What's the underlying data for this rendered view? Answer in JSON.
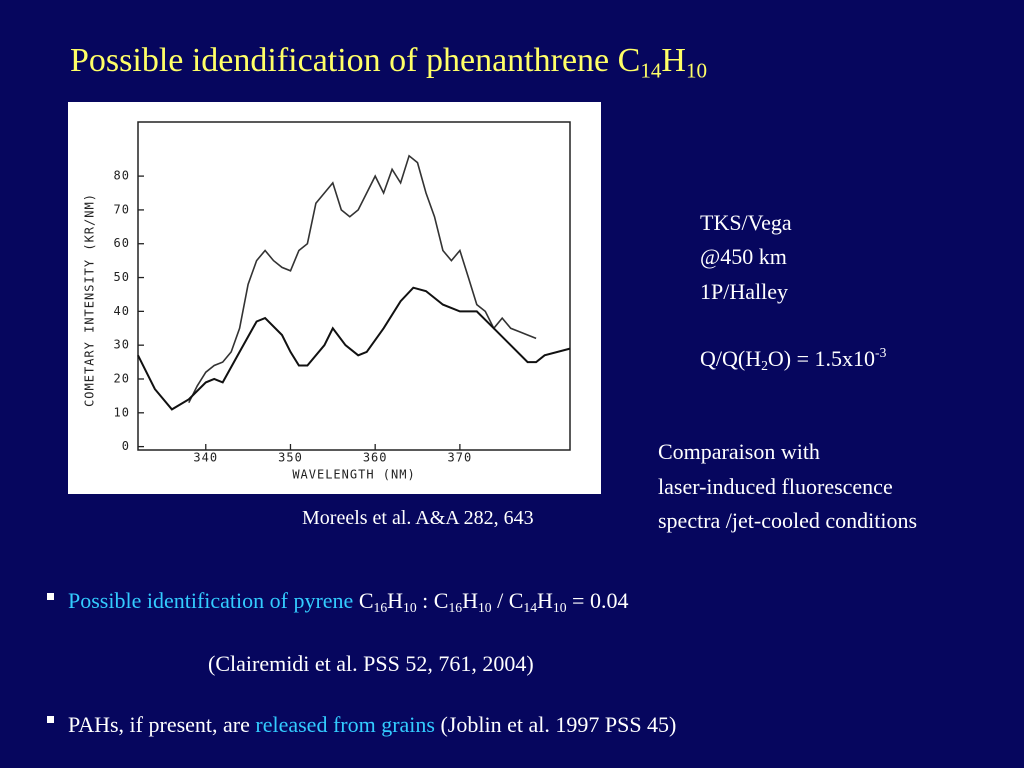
{
  "title": [
    {
      "text": "Possible idendification of phenanthrene C",
      "style": "normal"
    },
    {
      "text": "14",
      "style": "sub"
    },
    {
      "text": "H",
      "style": "normal"
    },
    {
      "text": "10",
      "style": "sub"
    }
  ],
  "chart_data": {
    "type": "line",
    "y_label": "COMETARY INTENSITY (KR/NM)",
    "x_label": "WAVELENGTH (NM)",
    "xlim": [
      332,
      383
    ],
    "ylim": [
      -1,
      96
    ],
    "xticks": [
      340,
      350,
      360,
      370
    ],
    "yticks": [
      0,
      10,
      20,
      30,
      40,
      50,
      60,
      70,
      80
    ],
    "series": [
      {
        "color": "#333333",
        "x": [
          338,
          339,
          340,
          341,
          342,
          343,
          344,
          345,
          346,
          347,
          348,
          349,
          350,
          351,
          352,
          353,
          354,
          355,
          356,
          357,
          358,
          359,
          360,
          361,
          362,
          363,
          364,
          365,
          366,
          367,
          368,
          369,
          370,
          371,
          372,
          373,
          374,
          375,
          376,
          377,
          378,
          379
        ],
        "values": [
          13,
          18,
          22,
          24,
          25,
          28,
          35,
          48,
          55,
          58,
          55,
          53,
          52,
          58,
          60,
          72,
          75,
          78,
          70,
          68,
          70,
          75,
          80,
          75,
          82,
          78,
          86,
          84,
          75,
          68,
          58,
          55,
          58,
          50,
          42,
          40,
          35,
          38,
          35,
          34,
          33,
          32
        ]
      },
      {
        "color": "#111111",
        "x": [
          332,
          334,
          336,
          338,
          340,
          341,
          342,
          344,
          346,
          347,
          349,
          350,
          351,
          352,
          354,
          355,
          356.5,
          358,
          359,
          361,
          363,
          364.5,
          366,
          368,
          370,
          372,
          374,
          376,
          378,
          379,
          380,
          383
        ],
        "values": [
          27,
          17,
          11,
          14,
          19,
          20,
          19,
          28,
          37,
          38,
          33,
          28,
          24,
          24,
          30,
          35,
          30,
          27,
          28,
          35,
          43,
          47,
          46,
          42,
          40,
          40,
          35,
          30,
          25,
          25,
          27,
          29
        ]
      }
    ]
  },
  "side": {
    "lines": [
      "TKS/Vega",
      "@450 km",
      "1P/Halley"
    ],
    "ratio": [
      {
        "text": "Q/Q(H",
        "style": "normal"
      },
      {
        "text": "2",
        "style": "sub"
      },
      {
        "text": "O) = 1.5x10",
        "style": "normal"
      },
      {
        "text": "-3",
        "style": "sup"
      }
    ],
    "comparison": [
      "Comparaison with",
      "laser-induced fluorescence",
      "spectra /jet-cooled conditions"
    ]
  },
  "caption": "Moreels et al. A&A 282, 643",
  "bullets": [
    [
      {
        "text": "Possible identification of pyrene",
        "style": "accent"
      },
      {
        "text": " C",
        "style": "normal"
      },
      {
        "text": "16",
        "style": "sub"
      },
      {
        "text": "H",
        "style": "normal"
      },
      {
        "text": "10",
        "style": "sub"
      },
      {
        "text": " : C",
        "style": "normal"
      },
      {
        "text": "16",
        "style": "sub"
      },
      {
        "text": "H",
        "style": "normal"
      },
      {
        "text": "10",
        "style": "sub"
      },
      {
        "text": " / C",
        "style": "normal"
      },
      {
        "text": "14",
        "style": "sub"
      },
      {
        "text": "H",
        "style": "normal"
      },
      {
        "text": "10",
        "style": "sub"
      },
      {
        "text": " = 0.04",
        "style": "normal"
      }
    ],
    [
      {
        "text": "PAHs, if present, are ",
        "style": "normal"
      },
      {
        "text": "released from grains",
        "style": "accent"
      },
      {
        "text": " (Joblin et al. 1997 PSS 45)",
        "style": "normal"
      }
    ]
  ],
  "reference": "(Clairemidi et al. PSS 52, 761, 2004)"
}
